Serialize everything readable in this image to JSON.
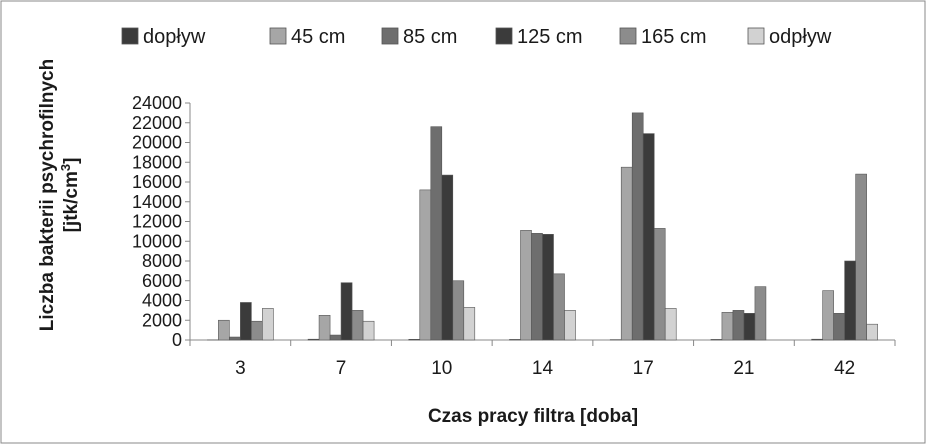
{
  "chart_data": {
    "type": "bar",
    "xlabel": "Czas pracy filtra [doba]",
    "ylabel_line1": "Liczba bakterii psychrofilnych",
    "ylabel_line2_base": "[jtk/cm",
    "ylabel_line2_sup": "3",
    "ylabel_line2_end": "]",
    "ylim": [
      0,
      24000
    ],
    "yticks": [
      "0",
      "2000",
      "4000",
      "6000",
      "8000",
      "10000",
      "12000",
      "14000",
      "16000",
      "18000",
      "20000",
      "22000",
      "24000"
    ],
    "ytick_values": [
      0,
      2000,
      4000,
      6000,
      8000,
      10000,
      12000,
      14000,
      16000,
      18000,
      20000,
      22000,
      24000
    ],
    "categories": [
      "3",
      "7",
      "10",
      "14",
      "17",
      "21",
      "42"
    ],
    "legend_position": "top",
    "grid": false,
    "series": [
      {
        "name": "dopływ",
        "color": "#3b3b3b",
        "values": [
          10,
          80,
          70,
          60,
          40,
          60,
          80
        ]
      },
      {
        "name": "45 cm",
        "color": "#a6a6a6",
        "values": [
          2000,
          2500,
          15200,
          11100,
          17500,
          2800,
          5000
        ]
      },
      {
        "name": "85 cm",
        "color": "#6e6e6e",
        "values": [
          300,
          500,
          21600,
          10800,
          23000,
          3000,
          2700
        ]
      },
      {
        "name": "125 cm",
        "color": "#3b3b3b",
        "values": [
          3800,
          5800,
          16700,
          10700,
          20900,
          2700,
          8000
        ]
      },
      {
        "name": "165 cm",
        "color": "#8c8c8c",
        "values": [
          1900,
          3000,
          6000,
          6700,
          11300,
          5400,
          16800
        ]
      },
      {
        "name": "odpływ",
        "color": "#d2d2d2",
        "values": [
          3200,
          1900,
          3300,
          3000,
          3200,
          0,
          1600
        ]
      }
    ]
  }
}
